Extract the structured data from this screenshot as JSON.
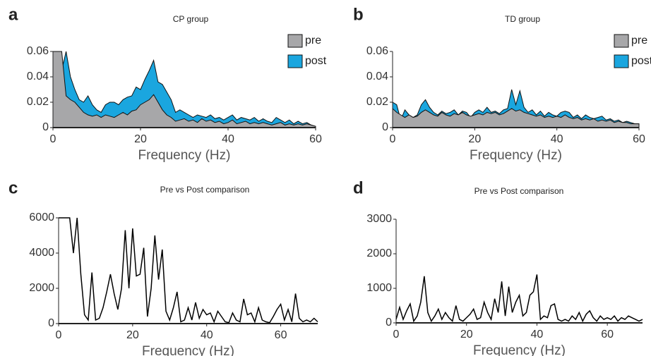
{
  "chart_data": [
    {
      "type": "area",
      "label": "a",
      "title": "CP group",
      "xlabel": "Frequency (Hz)",
      "x": [
        0,
        1,
        2,
        3,
        4,
        5,
        6,
        7,
        8,
        9,
        10,
        11,
        12,
        13,
        14,
        15,
        16,
        17,
        18,
        19,
        20,
        21,
        22,
        23,
        24,
        25,
        26,
        27,
        28,
        29,
        30,
        31,
        32,
        33,
        34,
        35,
        36,
        37,
        38,
        39,
        40,
        41,
        42,
        43,
        44,
        45,
        46,
        47,
        48,
        49,
        50,
        51,
        52,
        53,
        54,
        55,
        56,
        57,
        58,
        59,
        60
      ],
      "series": [
        {
          "name": "pre",
          "color": "#a7a7a9",
          "values": [
            0.06,
            0.06,
            0.06,
            0.025,
            0.022,
            0.02,
            0.016,
            0.012,
            0.01,
            0.009,
            0.01,
            0.008,
            0.01,
            0.009,
            0.008,
            0.01,
            0.012,
            0.01,
            0.013,
            0.014,
            0.018,
            0.02,
            0.022,
            0.026,
            0.02,
            0.014,
            0.01,
            0.008,
            0.005,
            0.006,
            0.007,
            0.005,
            0.006,
            0.004,
            0.007,
            0.005,
            0.006,
            0.004,
            0.005,
            0.003,
            0.004,
            0.006,
            0.003,
            0.004,
            0.005,
            0.003,
            0.004,
            0.003,
            0.004,
            0.003,
            0.002,
            0.003,
            0.004,
            0.002,
            0.003,
            0.002,
            0.003,
            0.002,
            0.003,
            0.002,
            0.001
          ]
        },
        {
          "name": "post",
          "color": "#1aa6df",
          "values": [
            0.06,
            0.06,
            0.045,
            0.06,
            0.04,
            0.03,
            0.022,
            0.02,
            0.025,
            0.018,
            0.014,
            0.012,
            0.018,
            0.02,
            0.02,
            0.018,
            0.022,
            0.024,
            0.025,
            0.032,
            0.03,
            0.038,
            0.045,
            0.053,
            0.036,
            0.034,
            0.028,
            0.022,
            0.012,
            0.014,
            0.012,
            0.01,
            0.008,
            0.01,
            0.009,
            0.008,
            0.01,
            0.007,
            0.008,
            0.006,
            0.008,
            0.01,
            0.006,
            0.008,
            0.007,
            0.006,
            0.008,
            0.005,
            0.007,
            0.005,
            0.004,
            0.008,
            0.006,
            0.004,
            0.006,
            0.003,
            0.005,
            0.003,
            0.004,
            0.002,
            0.001
          ]
        }
      ],
      "xlim": [
        0,
        60
      ],
      "xticks": [
        0,
        20,
        40,
        60
      ],
      "ylim": [
        0,
        0.06
      ],
      "yticks": [
        0,
        0.02,
        0.04,
        0.06
      ]
    },
    {
      "type": "area",
      "label": "b",
      "title": "TD group",
      "xlabel": "Frequency (Hz)",
      "x": [
        0,
        1,
        2,
        3,
        4,
        5,
        6,
        7,
        8,
        9,
        10,
        11,
        12,
        13,
        14,
        15,
        16,
        17,
        18,
        19,
        20,
        21,
        22,
        23,
        24,
        25,
        26,
        27,
        28,
        29,
        30,
        31,
        32,
        33,
        34,
        35,
        36,
        37,
        38,
        39,
        40,
        41,
        42,
        43,
        44,
        45,
        46,
        47,
        48,
        49,
        50,
        51,
        52,
        53,
        54,
        55,
        56,
        57,
        58,
        59,
        60
      ],
      "series": [
        {
          "name": "pre",
          "color": "#a7a7a9",
          "values": [
            0.015,
            0.012,
            0.01,
            0.008,
            0.01,
            0.008,
            0.009,
            0.012,
            0.014,
            0.012,
            0.01,
            0.009,
            0.012,
            0.01,
            0.009,
            0.011,
            0.01,
            0.012,
            0.01,
            0.009,
            0.01,
            0.011,
            0.01,
            0.012,
            0.011,
            0.012,
            0.01,
            0.011,
            0.013,
            0.015,
            0.013,
            0.014,
            0.012,
            0.011,
            0.01,
            0.009,
            0.01,
            0.008,
            0.009,
            0.008,
            0.009,
            0.008,
            0.01,
            0.008,
            0.007,
            0.008,
            0.006,
            0.007,
            0.006,
            0.007,
            0.005,
            0.006,
            0.005,
            0.006,
            0.004,
            0.005,
            0.004,
            0.004,
            0.003,
            0.003,
            0.003
          ]
        },
        {
          "name": "post",
          "color": "#1aa6df",
          "values": [
            0.02,
            0.018,
            0.006,
            0.014,
            0.01,
            0.008,
            0.01,
            0.018,
            0.022,
            0.016,
            0.012,
            0.01,
            0.013,
            0.011,
            0.012,
            0.014,
            0.01,
            0.013,
            0.012,
            0.008,
            0.012,
            0.014,
            0.012,
            0.016,
            0.012,
            0.013,
            0.011,
            0.014,
            0.015,
            0.03,
            0.018,
            0.029,
            0.016,
            0.012,
            0.014,
            0.01,
            0.013,
            0.009,
            0.012,
            0.01,
            0.009,
            0.012,
            0.013,
            0.012,
            0.008,
            0.01,
            0.007,
            0.01,
            0.008,
            0.007,
            0.008,
            0.009,
            0.006,
            0.007,
            0.005,
            0.006,
            0.004,
            0.005,
            0.004,
            0.003,
            0.003
          ]
        }
      ],
      "xlim": [
        0,
        60
      ],
      "xticks": [
        0,
        20,
        40,
        60
      ],
      "ylim": [
        0,
        0.06
      ],
      "yticks": [
        0,
        0.02,
        0.04,
        0.06
      ]
    },
    {
      "type": "line",
      "label": "c",
      "title": "Pre vs Post comparison",
      "xlabel": "Frequency (Hz)",
      "x": [
        0,
        1,
        2,
        3,
        4,
        5,
        6,
        7,
        8,
        9,
        10,
        11,
        12,
        13,
        14,
        15,
        16,
        17,
        18,
        19,
        20,
        21,
        22,
        23,
        24,
        25,
        26,
        27,
        28,
        29,
        30,
        31,
        32,
        33,
        34,
        35,
        36,
        37,
        38,
        39,
        40,
        41,
        42,
        43,
        44,
        45,
        46,
        47,
        48,
        49,
        50,
        51,
        52,
        53,
        54,
        55,
        56,
        57,
        58,
        59,
        60,
        61,
        62,
        63,
        64,
        65,
        66,
        67,
        68,
        69,
        70
      ],
      "series": [
        {
          "color": "#000000",
          "values": [
            6000,
            6000,
            6000,
            6000,
            4000,
            6000,
            2800,
            500,
            200,
            2900,
            200,
            300,
            900,
            1800,
            2800,
            1700,
            800,
            2000,
            5300,
            2000,
            5400,
            2700,
            2800,
            4300,
            400,
            2000,
            5000,
            2500,
            4200,
            700,
            200,
            900,
            1800,
            100,
            200,
            900,
            200,
            1200,
            300,
            800,
            500,
            600,
            100,
            700,
            400,
            100,
            50,
            600,
            200,
            100,
            1400,
            500,
            600,
            100,
            900,
            200,
            100,
            50,
            400,
            800,
            1100,
            200,
            800,
            100,
            1700,
            300,
            100,
            200,
            100,
            300,
            100
          ]
        }
      ],
      "xlim": [
        0,
        70
      ],
      "xticks": [
        0,
        20,
        40,
        60
      ],
      "ylim": [
        0,
        6000
      ],
      "yticks": [
        0,
        2000,
        4000,
        6000
      ]
    },
    {
      "type": "line",
      "label": "d",
      "title": "Pre vs Post comparison",
      "xlabel": "Frequency (Hz)",
      "x": [
        0,
        1,
        2,
        3,
        4,
        5,
        6,
        7,
        8,
        9,
        10,
        11,
        12,
        13,
        14,
        15,
        16,
        17,
        18,
        19,
        20,
        21,
        22,
        23,
        24,
        25,
        26,
        27,
        28,
        29,
        30,
        31,
        32,
        33,
        34,
        35,
        36,
        37,
        38,
        39,
        40,
        41,
        42,
        43,
        44,
        45,
        46,
        47,
        48,
        49,
        50,
        51,
        52,
        53,
        54,
        55,
        56,
        57,
        58,
        59,
        60,
        61,
        62,
        63,
        64,
        65,
        66,
        67,
        68,
        69,
        70
      ],
      "series": [
        {
          "color": "#000000",
          "values": [
            100,
            450,
            100,
            350,
            550,
            50,
            200,
            600,
            1350,
            300,
            50,
            200,
            400,
            100,
            300,
            150,
            50,
            500,
            100,
            50,
            150,
            250,
            400,
            100,
            150,
            600,
            300,
            100,
            700,
            300,
            1200,
            200,
            1050,
            300,
            600,
            800,
            200,
            300,
            800,
            900,
            1400,
            100,
            200,
            150,
            500,
            550,
            100,
            50,
            100,
            50,
            200,
            100,
            300,
            50,
            250,
            350,
            150,
            50,
            200,
            100,
            150,
            100,
            200,
            50,
            150,
            100,
            200,
            150,
            100,
            50,
            100
          ]
        }
      ],
      "xlim": [
        0,
        70
      ],
      "xticks": [
        0,
        20,
        40,
        60
      ],
      "ylim": [
        0,
        3000
      ],
      "yticks": [
        0,
        1000,
        2000,
        3000
      ]
    }
  ]
}
